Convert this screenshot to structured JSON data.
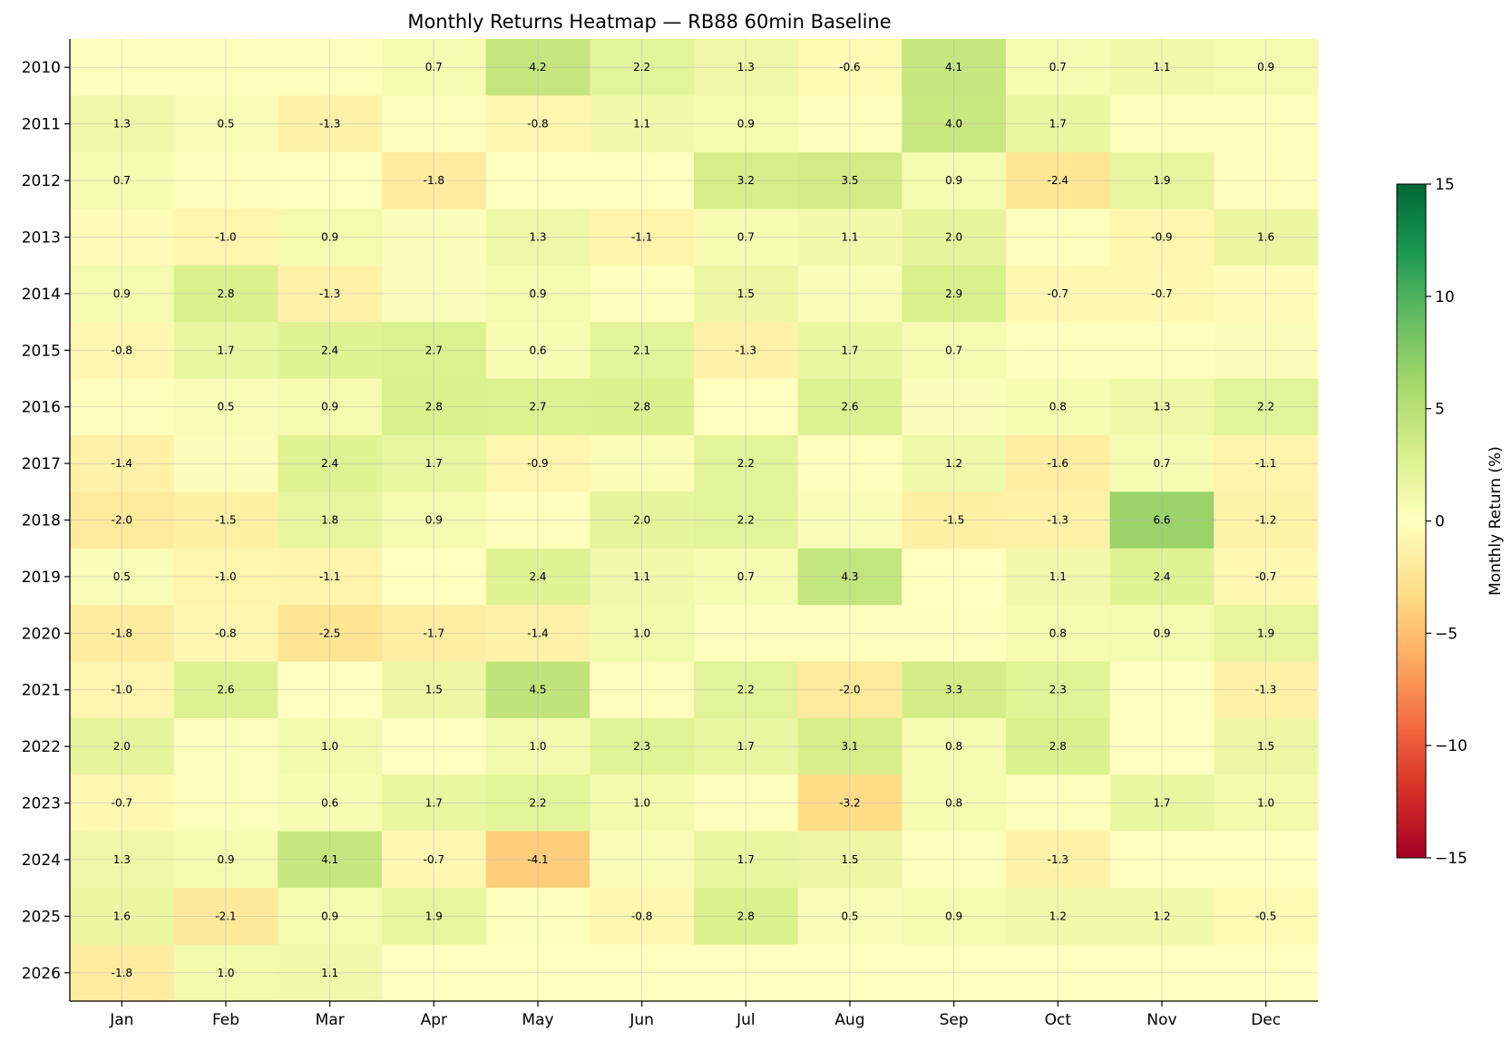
{
  "chart_data": {
    "type": "heatmap",
    "title": "Monthly Returns Heatmap — RB88 60min Baseline",
    "xlabel": "",
    "ylabel": "",
    "x_categories": [
      "Jan",
      "Feb",
      "Mar",
      "Apr",
      "May",
      "Jun",
      "Jul",
      "Aug",
      "Sep",
      "Oct",
      "Nov",
      "Dec"
    ],
    "y_categories": [
      "2010",
      "2011",
      "2012",
      "2013",
      "2014",
      "2015",
      "2016",
      "2017",
      "2018",
      "2019",
      "2020",
      "2021",
      "2022",
      "2023",
      "2024",
      "2025",
      "2026"
    ],
    "values": [
      [
        0.1,
        0.1,
        0.1,
        0.7,
        4.2,
        2.2,
        1.3,
        -0.6,
        4.1,
        0.7,
        1.1,
        0.9
      ],
      [
        1.3,
        0.5,
        -1.3,
        0.2,
        -0.8,
        1.1,
        0.9,
        -0.2,
        4.0,
        1.7,
        -0.1,
        -0.1
      ],
      [
        0.7,
        -0.1,
        0.0,
        -1.8,
        0.0,
        0.0,
        3.2,
        3.5,
        0.9,
        -2.4,
        1.9,
        -0.2
      ],
      [
        -0.3,
        -1.0,
        0.9,
        0.3,
        1.3,
        -1.1,
        0.7,
        1.1,
        2.0,
        -0.2,
        -0.9,
        1.6
      ],
      [
        0.9,
        2.8,
        -1.3,
        0.3,
        0.9,
        0.1,
        1.5,
        0.4,
        2.9,
        -0.7,
        -0.7,
        -0.3
      ],
      [
        -0.8,
        1.7,
        2.4,
        2.7,
        0.6,
        2.1,
        -1.3,
        1.7,
        0.7,
        -0.1,
        -0.1,
        0.3
      ],
      [
        -0.1,
        0.5,
        0.9,
        2.8,
        2.7,
        2.8,
        0.0,
        2.6,
        0.3,
        0.8,
        1.3,
        2.2
      ],
      [
        -1.4,
        0.3,
        2.4,
        1.7,
        -0.9,
        0.4,
        2.2,
        0.1,
        1.2,
        -1.6,
        0.7,
        -1.1
      ],
      [
        -2.0,
        -1.5,
        1.8,
        0.9,
        0.1,
        2.0,
        2.2,
        0.4,
        -1.5,
        -1.3,
        6.6,
        -1.2
      ],
      [
        0.5,
        -1.0,
        -1.1,
        0.0,
        2.4,
        1.1,
        0.7,
        4.3,
        0.0,
        1.1,
        2.4,
        -0.7
      ],
      [
        -1.8,
        -0.8,
        -2.5,
        -1.7,
        -1.4,
        1.0,
        0.1,
        0.1,
        0.1,
        0.8,
        0.9,
        1.9
      ],
      [
        -1.0,
        2.6,
        0.0,
        1.5,
        4.5,
        -0.2,
        2.2,
        -2.0,
        3.3,
        2.3,
        0.0,
        -1.3
      ],
      [
        2.0,
        0.2,
        1.0,
        0.0,
        1.0,
        2.3,
        1.7,
        3.1,
        0.8,
        2.8,
        0.0,
        1.5
      ],
      [
        -0.7,
        0.2,
        0.6,
        1.7,
        2.2,
        1.0,
        -0.1,
        -3.2,
        0.8,
        -0.2,
        1.7,
        1.0
      ],
      [
        1.3,
        0.9,
        4.1,
        -0.7,
        -4.1,
        0.4,
        1.7,
        1.5,
        -0.2,
        -1.3,
        0.0,
        0.0
      ],
      [
        1.6,
        -2.1,
        0.9,
        1.9,
        0.2,
        -0.8,
        2.8,
        0.5,
        0.9,
        1.2,
        1.2,
        -0.5
      ],
      [
        -1.8,
        1.0,
        1.1,
        0.0,
        0.0,
        0.0,
        0.0,
        0.0,
        0.0,
        0.0,
        0.0,
        0.0
      ]
    ],
    "labels": [
      [
        "",
        "",
        "",
        "0.7",
        "4.2",
        "2.2",
        "1.3",
        "-0.6",
        "4.1",
        "0.7",
        "1.1",
        "0.9"
      ],
      [
        "1.3",
        "0.5",
        "-1.3",
        "",
        "-0.8",
        "1.1",
        "0.9",
        "",
        "4.0",
        "1.7",
        "",
        ""
      ],
      [
        "0.7",
        "",
        "",
        "-1.8",
        "",
        "",
        "3.2",
        "3.5",
        "0.9",
        "-2.4",
        "1.9",
        ""
      ],
      [
        "",
        "-1.0",
        "0.9",
        "",
        "1.3",
        "-1.1",
        "0.7",
        "1.1",
        "2.0",
        "",
        "-0.9",
        "1.6"
      ],
      [
        "0.9",
        "2.8",
        "-1.3",
        "",
        "0.9",
        "",
        "1.5",
        "",
        "2.9",
        "-0.7",
        "-0.7",
        ""
      ],
      [
        "-0.8",
        "1.7",
        "2.4",
        "2.7",
        "0.6",
        "2.1",
        "-1.3",
        "1.7",
        "0.7",
        "",
        "",
        ""
      ],
      [
        "",
        "0.5",
        "0.9",
        "2.8",
        "2.7",
        "2.8",
        "",
        "2.6",
        "",
        "0.8",
        "1.3",
        "2.2"
      ],
      [
        "-1.4",
        "",
        "2.4",
        "1.7",
        "-0.9",
        "",
        "2.2",
        "",
        "1.2",
        "-1.6",
        "0.7",
        "-1.1"
      ],
      [
        "-2.0",
        "-1.5",
        "1.8",
        "0.9",
        "",
        "2.0",
        "2.2",
        "",
        "-1.5",
        "-1.3",
        "6.6",
        "-1.2"
      ],
      [
        "0.5",
        "-1.0",
        "-1.1",
        "",
        "2.4",
        "1.1",
        "0.7",
        "4.3",
        "",
        "1.1",
        "2.4",
        "-0.7"
      ],
      [
        "-1.8",
        "-0.8",
        "-2.5",
        "-1.7",
        "-1.4",
        "1.0",
        "",
        "",
        "",
        "0.8",
        "0.9",
        "1.9"
      ],
      [
        "-1.0",
        "2.6",
        "",
        "1.5",
        "4.5",
        "",
        "2.2",
        "-2.0",
        "3.3",
        "2.3",
        "",
        "-1.3"
      ],
      [
        "2.0",
        "",
        "1.0",
        "",
        "1.0",
        "2.3",
        "1.7",
        "3.1",
        "0.8",
        "2.8",
        "",
        "1.5"
      ],
      [
        "-0.7",
        "",
        "0.6",
        "1.7",
        "2.2",
        "1.0",
        "",
        "-3.2",
        "0.8",
        "",
        "1.7",
        "1.0"
      ],
      [
        "1.3",
        "0.9",
        "4.1",
        "-0.7",
        "-4.1",
        "",
        "1.7",
        "1.5",
        "",
        "-1.3",
        "",
        ""
      ],
      [
        "1.6",
        "-2.1",
        "0.9",
        "1.9",
        "",
        "-0.8",
        "2.8",
        "0.5",
        "0.9",
        "1.2",
        "1.2",
        "-0.5"
      ],
      [
        "-1.8",
        "1.0",
        "1.1",
        "",
        "",
        "",
        "",
        "",
        "",
        "",
        "",
        ""
      ]
    ],
    "color_scale": {
      "name": "RdYlGn",
      "vmin": -15,
      "vmax": 15,
      "stops": [
        "#a50026",
        "#d73027",
        "#f46d43",
        "#fdae61",
        "#fee08b",
        "#ffffbf",
        "#d9ef8b",
        "#a6d96a",
        "#66bd63",
        "#1a9850",
        "#006837"
      ]
    },
    "colorbar": {
      "label": "Monthly Return (%)",
      "ticks": [
        15,
        10,
        5,
        0,
        -5,
        -10,
        -15
      ],
      "tick_labels": [
        "15",
        "10",
        "5",
        "0",
        "−5",
        "−10",
        "−15"
      ],
      "placement": "right"
    },
    "grid": true
  }
}
